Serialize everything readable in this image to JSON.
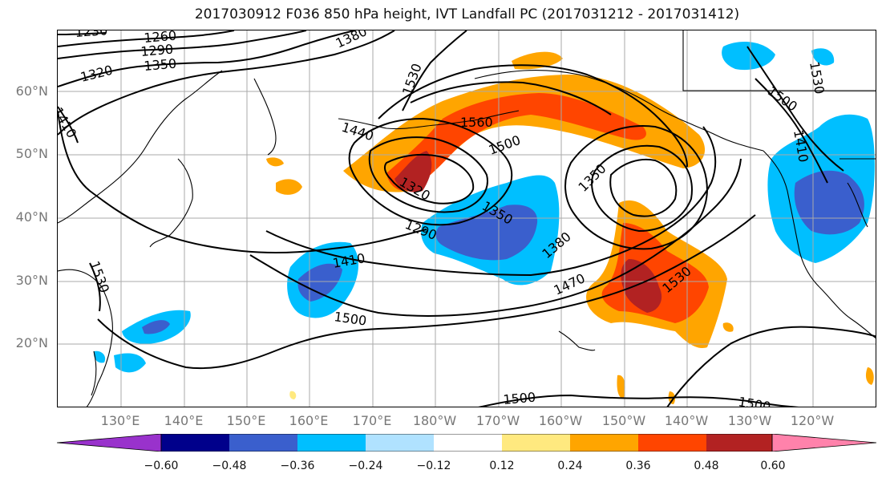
{
  "title": "2017030912 F036 850 hPa height, IVT Landfall PC (2017031212 - 2017031412)",
  "lat_labels": [
    "60°N",
    "50°N",
    "40°N",
    "30°N",
    "20°N"
  ],
  "lon_labels": [
    "130°E",
    "140°E",
    "150°E",
    "160°E",
    "170°E",
    "180°W",
    "170°W",
    "160°W",
    "150°W",
    "140°W",
    "130°W",
    "120°W"
  ],
  "contour_labels": [
    "1230",
    "1260",
    "1290",
    "1320",
    "1350",
    "1380",
    "1410",
    "1440",
    "1530",
    "1560",
    "1500",
    "1320",
    "1290",
    "1350",
    "1380",
    "1350",
    "1410",
    "1470",
    "1530",
    "1500",
    "1530",
    "1500",
    "1410",
    "1530",
    "1500",
    "1500",
    "1530"
  ],
  "colorbar": {
    "ticks": [
      "−0.60",
      "−0.48",
      "−0.36",
      "−0.24",
      "−0.12",
      "0.12",
      "0.24",
      "0.36",
      "0.48",
      "0.60"
    ],
    "colors": [
      "#9932cc",
      "#00008b",
      "#3a5fcd",
      "#00bfff",
      "#b0e2ff",
      "#ffffff",
      "#ffe97f",
      "#ffa500",
      "#ff4500",
      "#b22222",
      "#ff82ab"
    ]
  },
  "palette": {
    "orange": "#ffa500",
    "red_orange": "#ff4500",
    "dark_red": "#b22222",
    "yellow": "#ffe97f",
    "light_blue": "#00bfff",
    "royal_blue": "#3a5fcd",
    "pale_blue": "#b0e2ff"
  }
}
